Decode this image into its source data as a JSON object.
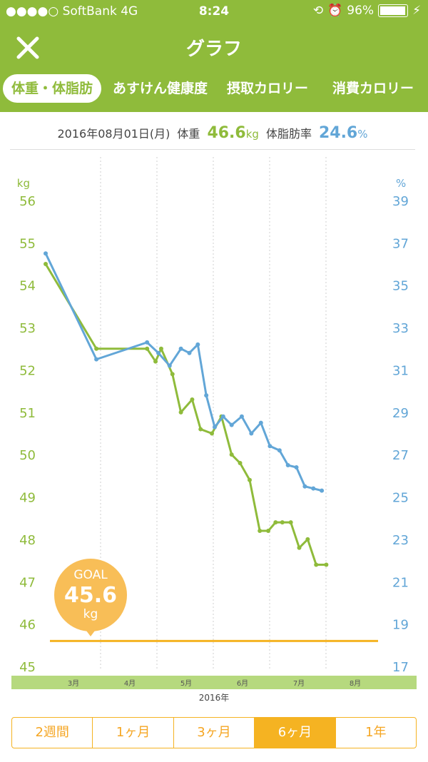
{
  "status": {
    "carrier": "●●●●○ SoftBank  4G",
    "time": "8:24",
    "battery": "96%",
    "battery_level": 0.96
  },
  "nav": {
    "title": "グラフ"
  },
  "tabs": [
    {
      "label": "体重・体脂肪",
      "active": true
    },
    {
      "label": "あすけん健康度",
      "active": false
    },
    {
      "label": "摂取カロリー",
      "active": false
    },
    {
      "label": "消費カロリー",
      "active": false
    }
  ],
  "summary": {
    "date": "2016年08月01日(月)",
    "weight_label": "体重",
    "weight_value": "46.6",
    "weight_unit": "kg",
    "fat_label": "体脂肪率",
    "fat_value": "24.6",
    "fat_unit": "%"
  },
  "goal": {
    "label": "GOAL",
    "value": "45.6",
    "unit": "kg"
  },
  "ranges": [
    {
      "label": "2週間",
      "active": false
    },
    {
      "label": "1ヶ月",
      "active": false
    },
    {
      "label": "3ヶ月",
      "active": false
    },
    {
      "label": "6ヶ月",
      "active": true
    },
    {
      "label": "1年",
      "active": false
    }
  ],
  "colors": {
    "brand_green": "#8fbb3b",
    "fat_blue": "#62a6d7",
    "goal_orange": "#f8be57",
    "range_orange": "#f5b322"
  },
  "chart_data": {
    "type": "line",
    "left_axis": {
      "label": "kg",
      "ylim": [
        45,
        56
      ],
      "ticks": [
        56,
        55,
        54,
        53,
        52,
        51,
        50,
        49,
        48,
        47,
        46,
        45
      ]
    },
    "right_axis": {
      "label": "%",
      "ylim": [
        17,
        39
      ],
      "ticks": [
        39,
        37,
        35,
        33,
        31,
        29,
        27,
        25,
        23,
        21,
        19,
        17
      ]
    },
    "x_labels": [
      "3月",
      "4月",
      "5月",
      "6月",
      "7月",
      "8月"
    ],
    "x_caption": "2016年",
    "goal_line": 45.6,
    "series": [
      {
        "axis": "left",
        "color": "#8fbb3b",
        "x": [
          0,
          0.9,
          1.8,
          1.95,
          2.05,
          2.25,
          2.4,
          2.6,
          2.75,
          2.95,
          3.12,
          3.3,
          3.45,
          3.62,
          3.8,
          3.95,
          4.08,
          4.2,
          4.35,
          4.5,
          4.65,
          4.8,
          4.98
        ],
        "y": [
          54.5,
          52.5,
          52.5,
          52.2,
          52.5,
          51.9,
          51.0,
          51.3,
          50.6,
          50.5,
          50.9,
          50.0,
          49.8,
          49.4,
          48.2,
          48.2,
          48.4,
          48.4,
          48.4,
          47.8,
          48.0,
          47.4,
          47.4
        ]
      },
      {
        "axis": "right",
        "color": "#62a6d7",
        "x": [
          0,
          0.9,
          1.8,
          2.0,
          2.2,
          2.4,
          2.55,
          2.7,
          2.85,
          3.0,
          3.15,
          3.3,
          3.48,
          3.65,
          3.82,
          3.98,
          4.15,
          4.3,
          4.45,
          4.6,
          4.75,
          4.9
        ],
        "y": [
          36.5,
          31.5,
          32.3,
          31.8,
          31.2,
          32.0,
          31.8,
          32.2,
          29.8,
          28.3,
          28.8,
          28.4,
          28.8,
          28.0,
          28.5,
          27.4,
          27.2,
          26.5,
          26.4,
          25.5,
          25.4,
          25.3
        ]
      }
    ]
  }
}
